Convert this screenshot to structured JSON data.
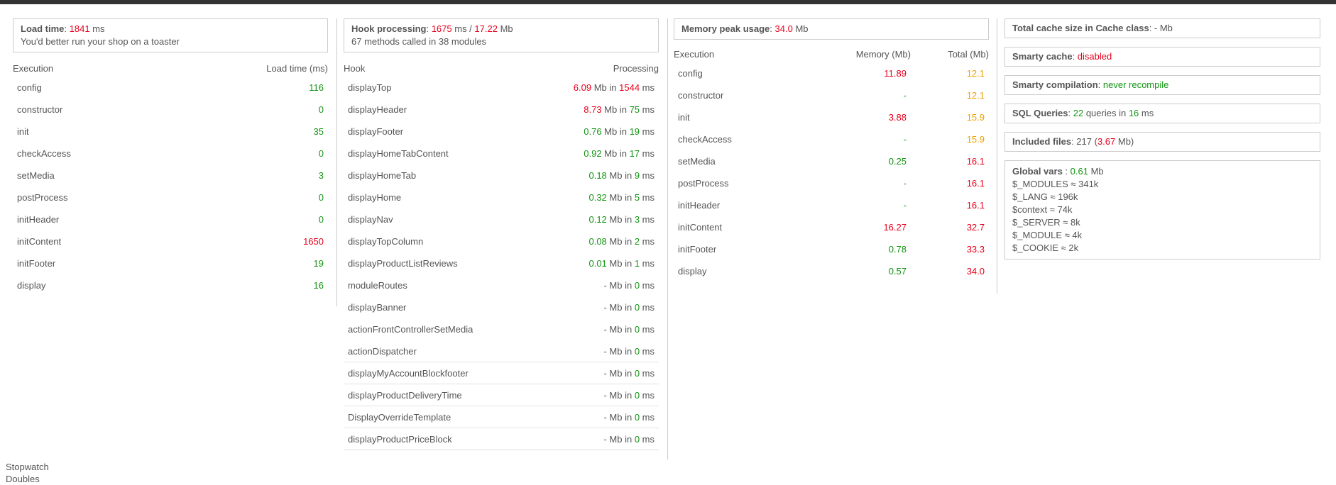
{
  "columns": [
    {
      "box": [
        [
          {
            "t": "Load time",
            "c": "strong"
          },
          {
            "t": ": "
          },
          {
            "t": "1841",
            "c": "bad"
          },
          {
            "t": " ms"
          }
        ],
        [
          {
            "t": "You'd better run your shop on a toaster"
          }
        ]
      ],
      "headers": [
        "Execution",
        "Load time (ms)"
      ],
      "rows": [
        [
          "config",
          [
            {
              "t": "116",
              "c": "good"
            }
          ]
        ],
        [
          "constructor",
          [
            {
              "t": "0",
              "c": "good"
            }
          ]
        ],
        [
          "init",
          [
            {
              "t": "35",
              "c": "good"
            }
          ]
        ],
        [
          "checkAccess",
          [
            {
              "t": "0",
              "c": "good"
            }
          ]
        ],
        [
          "setMedia",
          [
            {
              "t": "3",
              "c": "good"
            }
          ]
        ],
        [
          "postProcess",
          [
            {
              "t": "0",
              "c": "good"
            }
          ]
        ],
        [
          "initHeader",
          [
            {
              "t": "0",
              "c": "good"
            }
          ]
        ],
        [
          "initContent",
          [
            {
              "t": "1650",
              "c": "bad"
            }
          ]
        ],
        [
          "initFooter",
          [
            {
              "t": "19",
              "c": "good"
            }
          ]
        ],
        [
          "display",
          [
            {
              "t": "16",
              "c": "good"
            }
          ]
        ]
      ]
    },
    {
      "box": [
        [
          {
            "t": "Hook processing",
            "c": "strong"
          },
          {
            "t": ": "
          },
          {
            "t": "1675",
            "c": "bad"
          },
          {
            "t": " ms / "
          },
          {
            "t": "17.22",
            "c": "bad"
          },
          {
            "t": " Mb"
          }
        ],
        [
          {
            "t": "67 methods called in 38 modules"
          }
        ]
      ],
      "headers": [
        "Hook",
        "Processing"
      ],
      "rows": [
        [
          "displayTop",
          [
            {
              "t": "6.09",
              "c": "bad"
            },
            {
              "t": " Mb in "
            },
            {
              "t": "1544",
              "c": "bad"
            },
            {
              "t": " ms"
            }
          ]
        ],
        [
          "displayHeader",
          [
            {
              "t": "8.73",
              "c": "bad"
            },
            {
              "t": " Mb in "
            },
            {
              "t": "75",
              "c": "good"
            },
            {
              "t": " ms"
            }
          ]
        ],
        [
          "displayFooter",
          [
            {
              "t": "0.76",
              "c": "good"
            },
            {
              "t": " Mb in "
            },
            {
              "t": "19",
              "c": "good"
            },
            {
              "t": " ms"
            }
          ]
        ],
        [
          "displayHomeTabContent",
          [
            {
              "t": "0.92",
              "c": "good"
            },
            {
              "t": " Mb in "
            },
            {
              "t": "17",
              "c": "good"
            },
            {
              "t": " ms"
            }
          ]
        ],
        [
          "displayHomeTab",
          [
            {
              "t": "0.18",
              "c": "good"
            },
            {
              "t": " Mb in "
            },
            {
              "t": "9",
              "c": "good"
            },
            {
              "t": " ms"
            }
          ]
        ],
        [
          "displayHome",
          [
            {
              "t": "0.32",
              "c": "good"
            },
            {
              "t": " Mb in "
            },
            {
              "t": "5",
              "c": "good"
            },
            {
              "t": " ms"
            }
          ]
        ],
        [
          "displayNav",
          [
            {
              "t": "0.12",
              "c": "good"
            },
            {
              "t": " Mb in "
            },
            {
              "t": "3",
              "c": "good"
            },
            {
              "t": " ms"
            }
          ]
        ],
        [
          "displayTopColumn",
          [
            {
              "t": "0.08",
              "c": "good"
            },
            {
              "t": " Mb in "
            },
            {
              "t": "2",
              "c": "good"
            },
            {
              "t": " ms"
            }
          ]
        ],
        [
          "displayProductListReviews",
          [
            {
              "t": "0.01",
              "c": "good"
            },
            {
              "t": " Mb in "
            },
            {
              "t": "1",
              "c": "good"
            },
            {
              "t": " ms"
            }
          ]
        ],
        [
          "moduleRoutes",
          [
            {
              "t": "- Mb in "
            },
            {
              "t": "0",
              "c": "good"
            },
            {
              "t": " ms"
            }
          ]
        ],
        [
          "displayBanner",
          [
            {
              "t": "- Mb in "
            },
            {
              "t": "0",
              "c": "good"
            },
            {
              "t": " ms"
            }
          ]
        ],
        [
          "actionFrontControllerSetMedia",
          [
            {
              "t": "- Mb in "
            },
            {
              "t": "0",
              "c": "good"
            },
            {
              "t": " ms"
            }
          ]
        ],
        [
          "actionDispatcher",
          [
            {
              "t": "- Mb in "
            },
            {
              "t": "0",
              "c": "good"
            },
            {
              "t": " ms"
            }
          ]
        ],
        [
          "displayMyAccountBlockfooter",
          [
            {
              "t": "- Mb in "
            },
            {
              "t": "0",
              "c": "good"
            },
            {
              "t": " ms"
            }
          ]
        ],
        [
          "displayProductDeliveryTime",
          [
            {
              "t": "- Mb in "
            },
            {
              "t": "0",
              "c": "good"
            },
            {
              "t": " ms"
            }
          ]
        ],
        [
          "DisplayOverrideTemplate",
          [
            {
              "t": "- Mb in "
            },
            {
              "t": "0",
              "c": "good"
            },
            {
              "t": " ms"
            }
          ]
        ],
        [
          "displayProductPriceBlock",
          [
            {
              "t": "- Mb in "
            },
            {
              "t": "0",
              "c": "good"
            },
            {
              "t": " ms"
            }
          ]
        ]
      ]
    },
    {
      "box": [
        [
          {
            "t": "Memory peak usage",
            "c": "strong"
          },
          {
            "t": ": "
          },
          {
            "t": "34.0",
            "c": "bad"
          },
          {
            "t": " Mb"
          }
        ]
      ],
      "headers": [
        "Execution",
        "Memory (Mb)",
        "Total (Mb)"
      ],
      "rows": [
        [
          "config",
          [
            {
              "t": "11.89",
              "c": "bad"
            }
          ],
          [
            {
              "t": "12.1",
              "c": "warn"
            }
          ]
        ],
        [
          "constructor",
          [
            {
              "t": "-",
              "c": "good"
            }
          ],
          [
            {
              "t": "12.1",
              "c": "warn"
            }
          ]
        ],
        [
          "init",
          [
            {
              "t": "3.88",
              "c": "bad"
            }
          ],
          [
            {
              "t": "15.9",
              "c": "warn"
            }
          ]
        ],
        [
          "checkAccess",
          [
            {
              "t": "-",
              "c": "good"
            }
          ],
          [
            {
              "t": "15.9",
              "c": "warn"
            }
          ]
        ],
        [
          "setMedia",
          [
            {
              "t": "0.25",
              "c": "good"
            }
          ],
          [
            {
              "t": "16.1",
              "c": "bad"
            }
          ]
        ],
        [
          "postProcess",
          [
            {
              "t": "-",
              "c": "good"
            }
          ],
          [
            {
              "t": "16.1",
              "c": "bad"
            }
          ]
        ],
        [
          "initHeader",
          [
            {
              "t": "-",
              "c": "good"
            }
          ],
          [
            {
              "t": "16.1",
              "c": "bad"
            }
          ]
        ],
        [
          "initContent",
          [
            {
              "t": "16.27",
              "c": "bad"
            }
          ],
          [
            {
              "t": "32.7",
              "c": "bad"
            }
          ]
        ],
        [
          "initFooter",
          [
            {
              "t": "0.78",
              "c": "good"
            }
          ],
          [
            {
              "t": "33.3",
              "c": "bad"
            }
          ]
        ],
        [
          "display",
          [
            {
              "t": "0.57",
              "c": "good"
            }
          ],
          [
            {
              "t": "34.0",
              "c": "bad"
            }
          ]
        ]
      ]
    }
  ],
  "side_boxes": [
    [
      [
        {
          "t": "Total cache size in Cache class",
          "c": "strong"
        },
        {
          "t": ": - Mb"
        }
      ]
    ],
    [
      [
        {
          "t": "Smarty cache",
          "c": "strong"
        },
        {
          "t": ": "
        },
        {
          "t": "disabled",
          "c": "bad"
        }
      ]
    ],
    [
      [
        {
          "t": "Smarty compilation",
          "c": "strong"
        },
        {
          "t": ": "
        },
        {
          "t": "never recompile",
          "c": "good"
        }
      ]
    ],
    [
      [
        {
          "t": "SQL Queries",
          "c": "strong"
        },
        {
          "t": ": "
        },
        {
          "t": "22",
          "c": "good"
        },
        {
          "t": " queries in "
        },
        {
          "t": "16",
          "c": "good"
        },
        {
          "t": " ms"
        }
      ]
    ],
    [
      [
        {
          "t": "Included files",
          "c": "strong"
        },
        {
          "t": ": 217 ("
        },
        {
          "t": "3.67",
          "c": "bad"
        },
        {
          "t": " Mb)"
        }
      ]
    ],
    [
      [
        {
          "t": "Global vars",
          "c": "strong"
        },
        {
          "t": " : "
        },
        {
          "t": "0.61",
          "c": "good"
        },
        {
          "t": " Mb"
        }
      ],
      [
        {
          "t": "$_MODULES ≈ 341k"
        }
      ],
      [
        {
          "t": "$_LANG ≈ 196k"
        }
      ],
      [
        {
          "t": "$context ≈ 74k"
        }
      ],
      [
        {
          "t": "$_SERVER ≈ 8k"
        }
      ],
      [
        {
          "t": "$_MODULE ≈ 4k"
        }
      ],
      [
        {
          "t": "$_COOKIE ≈ 2k"
        }
      ]
    ]
  ],
  "footer": [
    "Stopwatch",
    "Doubles"
  ]
}
